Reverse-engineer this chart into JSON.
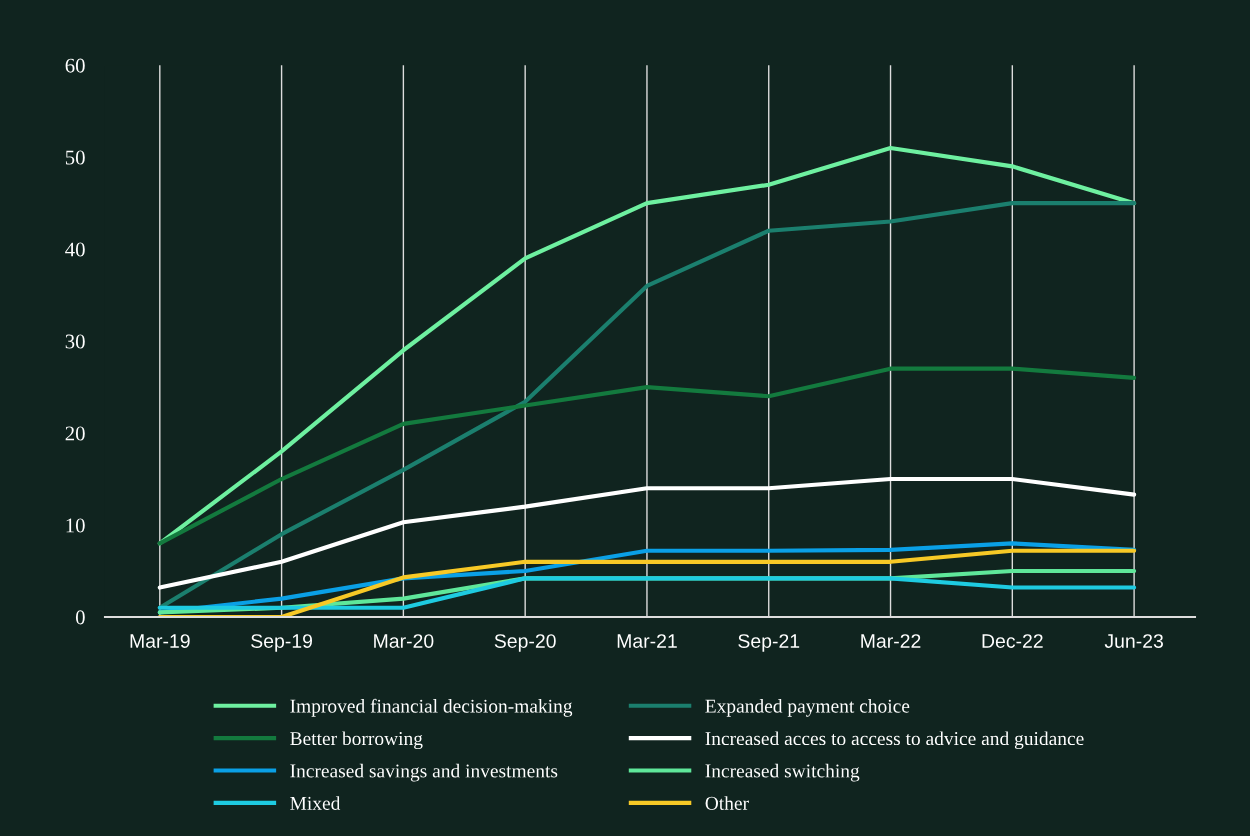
{
  "chart_data": {
    "type": "line",
    "categories": [
      "Mar-19",
      "Sep-19",
      "Mar-20",
      "Sep-20",
      "Mar-21",
      "Sep-21",
      "Mar-22",
      "Dec-22",
      "Jun-23"
    ],
    "ylim": [
      0,
      60
    ],
    "yticks": [
      0,
      10,
      20,
      30,
      40,
      50,
      60
    ],
    "grid": "x",
    "legend": "bottom",
    "marker": "none",
    "line_style": "solid",
    "series": [
      {
        "name": "Improved financial decision-making",
        "color": "#6ef0a0",
        "values": [
          8,
          18,
          29,
          39,
          45,
          47,
          51,
          49,
          45
        ]
      },
      {
        "name": "Expanded payment choice",
        "color": "#1b7f6e",
        "values": [
          1,
          9,
          16,
          23.4,
          36,
          42,
          43,
          45,
          45
        ]
      },
      {
        "name": "Better borrowing",
        "color": "#137a3e",
        "values": [
          8,
          15,
          21,
          23,
          25,
          24,
          27,
          27,
          26
        ]
      },
      {
        "name": "Increased acces to access to advice and guidance",
        "color": "#ffffff",
        "values": [
          3.2,
          6,
          10.3,
          12,
          14,
          14,
          15,
          15,
          13.3
        ]
      },
      {
        "name": "Increased savings and investments",
        "color": "#0aa0e6",
        "values": [
          0.5,
          2,
          4.2,
          5,
          7.2,
          7.2,
          7.3,
          8,
          7.3
        ]
      },
      {
        "name": "Increased switching",
        "color": "#5fe79a",
        "values": [
          0.5,
          1,
          2,
          4.2,
          4.2,
          4.2,
          4.2,
          5,
          5
        ]
      },
      {
        "name": "Mixed",
        "color": "#1ecbe1",
        "values": [
          1,
          1,
          1,
          4.2,
          4.2,
          4.2,
          4.2,
          3.2,
          3.2
        ]
      },
      {
        "name": "Other",
        "color": "#f7c926",
        "values": [
          0,
          0,
          4.3,
          6,
          6,
          6,
          6,
          7.2,
          7.2
        ]
      }
    ]
  }
}
